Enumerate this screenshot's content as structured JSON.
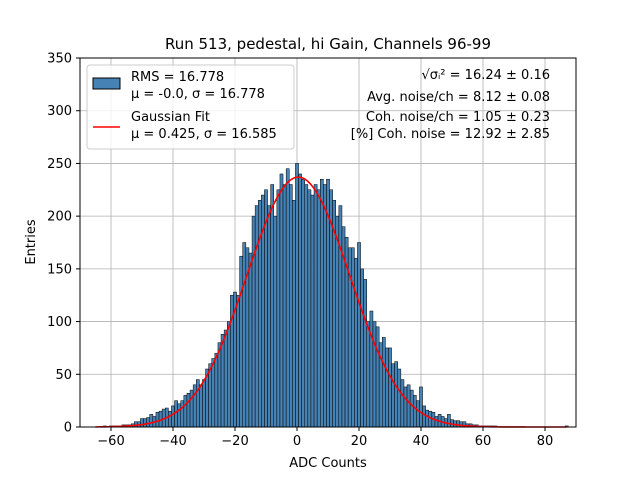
{
  "chart_data": {
    "type": "bar",
    "title": "Run 513, pedestal, hi Gain, Channels 96-99",
    "xlabel": "ADC Counts",
    "ylabel": "Entries",
    "xlim": [
      -70,
      90
    ],
    "ylim": [
      0,
      350
    ],
    "xticks": [
      "−60",
      "−40",
      "−20",
      "0",
      "20",
      "40",
      "60",
      "80"
    ],
    "xtick_values": [
      -60,
      -40,
      -20,
      0,
      20,
      40,
      60,
      80
    ],
    "yticks": [
      "0",
      "50",
      "100",
      "150",
      "200",
      "250",
      "300",
      "350"
    ],
    "ytick_values": [
      0,
      50,
      100,
      150,
      200,
      250,
      300,
      350
    ],
    "grid": true,
    "legend_position": "top-left",
    "series": [
      {
        "name": "RMS = 16.778",
        "name_line2": "μ = -0.0, σ = 16.778",
        "kind": "histogram",
        "color": "#4682b4",
        "edge_color": "#000000",
        "bin_centers": [
          -62,
          -61,
          -60,
          -59,
          -58,
          -57,
          -56,
          -55,
          -54,
          -53,
          -52,
          -51,
          -50,
          -49,
          -48,
          -47,
          -46,
          -45,
          -44,
          -43,
          -42,
          -41,
          -40,
          -39,
          -38,
          -37,
          -36,
          -35,
          -34,
          -33,
          -32,
          -31,
          -30,
          -29,
          -28,
          -27,
          -26,
          -25,
          -24,
          -23,
          -22,
          -21,
          -20,
          -19,
          -18,
          -17,
          -16,
          -15,
          -14,
          -13,
          -12,
          -11,
          -10,
          -9,
          -8,
          -7,
          -6,
          -5,
          -4,
          -3,
          -2,
          -1,
          0,
          1,
          2,
          3,
          4,
          5,
          6,
          7,
          8,
          9,
          10,
          11,
          12,
          13,
          14,
          15,
          16,
          17,
          18,
          19,
          20,
          21,
          22,
          23,
          24,
          25,
          26,
          27,
          28,
          29,
          30,
          31,
          32,
          33,
          34,
          35,
          36,
          37,
          38,
          39,
          40,
          41,
          42,
          43,
          44,
          45,
          46,
          47,
          48,
          49,
          50,
          51,
          52,
          53,
          54,
          55,
          56,
          57,
          58,
          59,
          60,
          61,
          62,
          63,
          64,
          65,
          66,
          67,
          68,
          69,
          70,
          71,
          72,
          73,
          74,
          75,
          76,
          77,
          78,
          79,
          80,
          81,
          82,
          83,
          84,
          85,
          86,
          87
        ],
        "values": [
          1,
          0,
          1,
          1,
          1,
          1,
          2,
          2,
          2,
          3,
          5,
          5,
          8,
          8,
          9,
          12,
          10,
          14,
          15,
          17,
          18,
          15,
          20,
          25,
          22,
          25,
          30,
          32,
          35,
          40,
          45,
          40,
          45,
          55,
          60,
          65,
          70,
          80,
          88,
          92,
          100,
          125,
          128,
          125,
          162,
          175,
          170,
          165,
          200,
          210,
          215,
          220,
          225,
          210,
          230,
          200,
          225,
          240,
          230,
          245,
          230,
          215,
          250,
          240,
          235,
          230,
          225,
          220,
          230,
          225,
          235,
          230,
          235,
          225,
          215,
          200,
          210,
          190,
          180,
          170,
          170,
          160,
          175,
          150,
          140,
          100,
          110,
          100,
          95,
          80,
          85,
          75,
          75,
          60,
          62,
          55,
          45,
          38,
          40,
          35,
          30,
          25,
          38,
          20,
          16,
          15,
          14,
          10,
          12,
          10,
          8,
          12,
          7,
          6,
          6,
          5,
          5,
          3,
          3,
          2,
          2,
          1,
          1,
          1,
          1,
          1,
          1,
          0,
          0,
          0,
          0,
          0,
          0,
          0,
          0,
          0,
          0,
          0,
          0,
          0,
          0,
          0,
          0,
          0,
          0,
          0,
          0,
          0,
          0,
          1
        ]
      },
      {
        "name": "Gaussian Fit",
        "name_line2": "μ = 0.425, σ = 16.585",
        "kind": "line",
        "color": "#ff0000",
        "mu": 0.425,
        "sigma": 16.585,
        "amplitude": 237,
        "x_range": [
          -65,
          87
        ]
      }
    ],
    "annotations": [
      "√σᵢ² = 16.24 ± 0.16",
      "Avg. noise/ch = 8.12 ± 0.08",
      "Coh. noise/ch = 1.05 ± 0.23",
      "[%] Coh. noise = 12.92 ± 2.85"
    ]
  }
}
